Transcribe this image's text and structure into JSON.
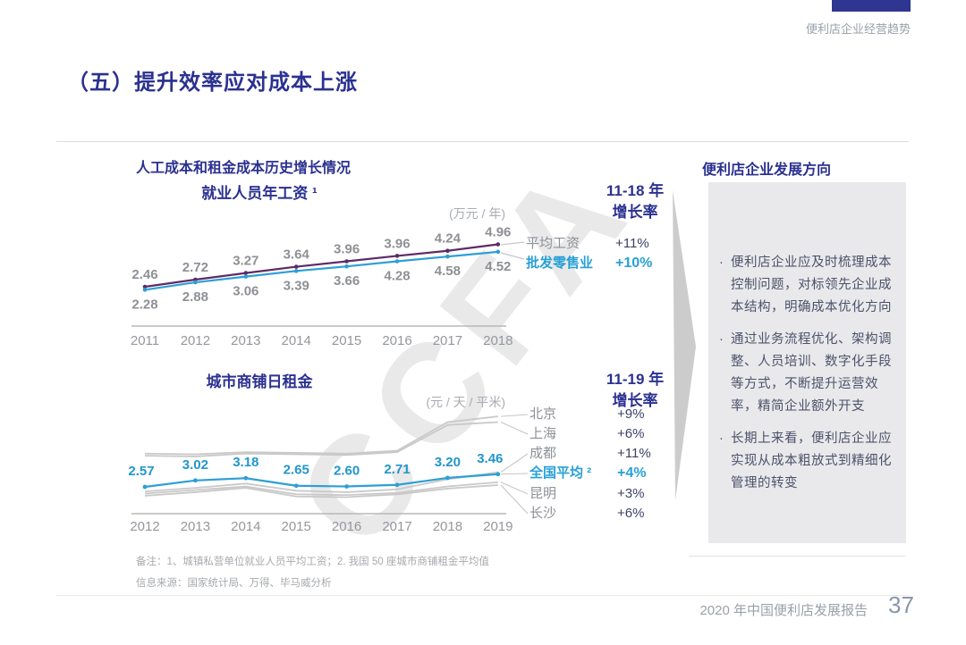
{
  "page": {
    "tab_label": "便利店企业经营趋势",
    "title": "（五）提升效率应对成本上涨",
    "section_title": "人工成本和租金成本历史增长情况",
    "right_panel": {
      "title": "便利店企业发展方向",
      "bullets": [
        "便利店企业应及时梳理成本控制问题，对标领先企业成本结构，明确成本优化方向",
        "通过业务流程优化、架构调整、人员培训、数字化手段等方式，不断提升运营效率，精简企业额外开支",
        "长期上来看，便利店企业应实现从成本粗放式到精细化管理的转变"
      ]
    },
    "notes": {
      "line1": "备注：1、城镇私营单位就业人员平均工资；2. 我国 50 座城市商铺租金平均值",
      "line2": "信息来源：国家统计局、万得、毕马威分析"
    },
    "footer": {
      "report_title": "2020 年中国便利店发展报告",
      "page_number": "37"
    },
    "watermark": "CCFA"
  },
  "colors": {
    "accent_blue": "#2b3190",
    "highlight_blue": "#28a0d6",
    "purple_line": "#5e2a66",
    "blue_line": "#2d9fd6",
    "gray_line": "#c9c9c9",
    "rate_navy": "#3c4168"
  },
  "chart_data": [
    {
      "type": "line",
      "title": "就业人员年工资 ¹",
      "unit": "(万元 / 年)",
      "growth_header": [
        "11-18 年",
        "增长率"
      ],
      "x": [
        2011,
        2012,
        2013,
        2014,
        2015,
        2016,
        2017,
        2018
      ],
      "series": [
        {
          "name": "平均工资",
          "growth": "+11%",
          "values": [
            2.46,
            2.88,
            3.27,
            3.64,
            3.96,
            4.28,
            4.58,
            4.96
          ]
        },
        {
          "name": "批发零售业",
          "growth": "+10%",
          "highlight": true,
          "values": [
            2.28,
            2.72,
            3.06,
            3.39,
            3.66,
            3.96,
            4.24,
            4.52
          ]
        }
      ],
      "point_labels_above": [
        "2.46",
        "2.72",
        "3.27",
        "3.64",
        "3.96",
        "3.96",
        "4.24",
        "4.96"
      ],
      "point_labels_below": [
        "2.28",
        "2.88",
        "3.06",
        "3.39",
        "3.66",
        "4.28",
        "4.58",
        "4.52"
      ]
    },
    {
      "type": "line",
      "title": "城市商铺日租金",
      "unit": "(元 / 天 / 平米)",
      "growth_header": [
        "11-19 年",
        "增长率"
      ],
      "x": [
        2012,
        2013,
        2014,
        2015,
        2016,
        2017,
        2018,
        2019
      ],
      "series": [
        {
          "name": "北京",
          "growth": "+9%",
          "estimated": true,
          "values": [
            4.9,
            4.85,
            5.0,
            4.95,
            4.9,
            5.1,
            7.1,
            7.5
          ]
        },
        {
          "name": "上海",
          "growth": "+6%",
          "estimated": true,
          "values": [
            4.75,
            4.7,
            4.9,
            4.85,
            4.8,
            5.0,
            6.9,
            7.1
          ]
        },
        {
          "name": "成都",
          "growth": "+11%",
          "estimated": true,
          "values": [
            2.25,
            2.5,
            2.8,
            2.3,
            2.2,
            2.4,
            3.1,
            3.6
          ]
        },
        {
          "name": "全国平均 ²",
          "growth": "+4%",
          "highlight": true,
          "values": [
            2.57,
            3.02,
            3.18,
            2.65,
            2.6,
            2.71,
            3.2,
            3.46
          ]
        },
        {
          "name": "昆明",
          "growth": "+3%",
          "estimated": true,
          "values": [
            2.1,
            2.35,
            2.6,
            2.05,
            2.0,
            2.15,
            2.6,
            2.9
          ]
        },
        {
          "name": "长沙",
          "growth": "+6%",
          "estimated": true,
          "values": [
            1.95,
            2.2,
            2.5,
            1.9,
            1.85,
            2.05,
            2.45,
            2.7
          ]
        }
      ],
      "point_labels": [
        "2.57",
        "3.02",
        "3.18",
        "2.65",
        "2.60",
        "2.71",
        "3.20",
        "3.46"
      ]
    }
  ]
}
